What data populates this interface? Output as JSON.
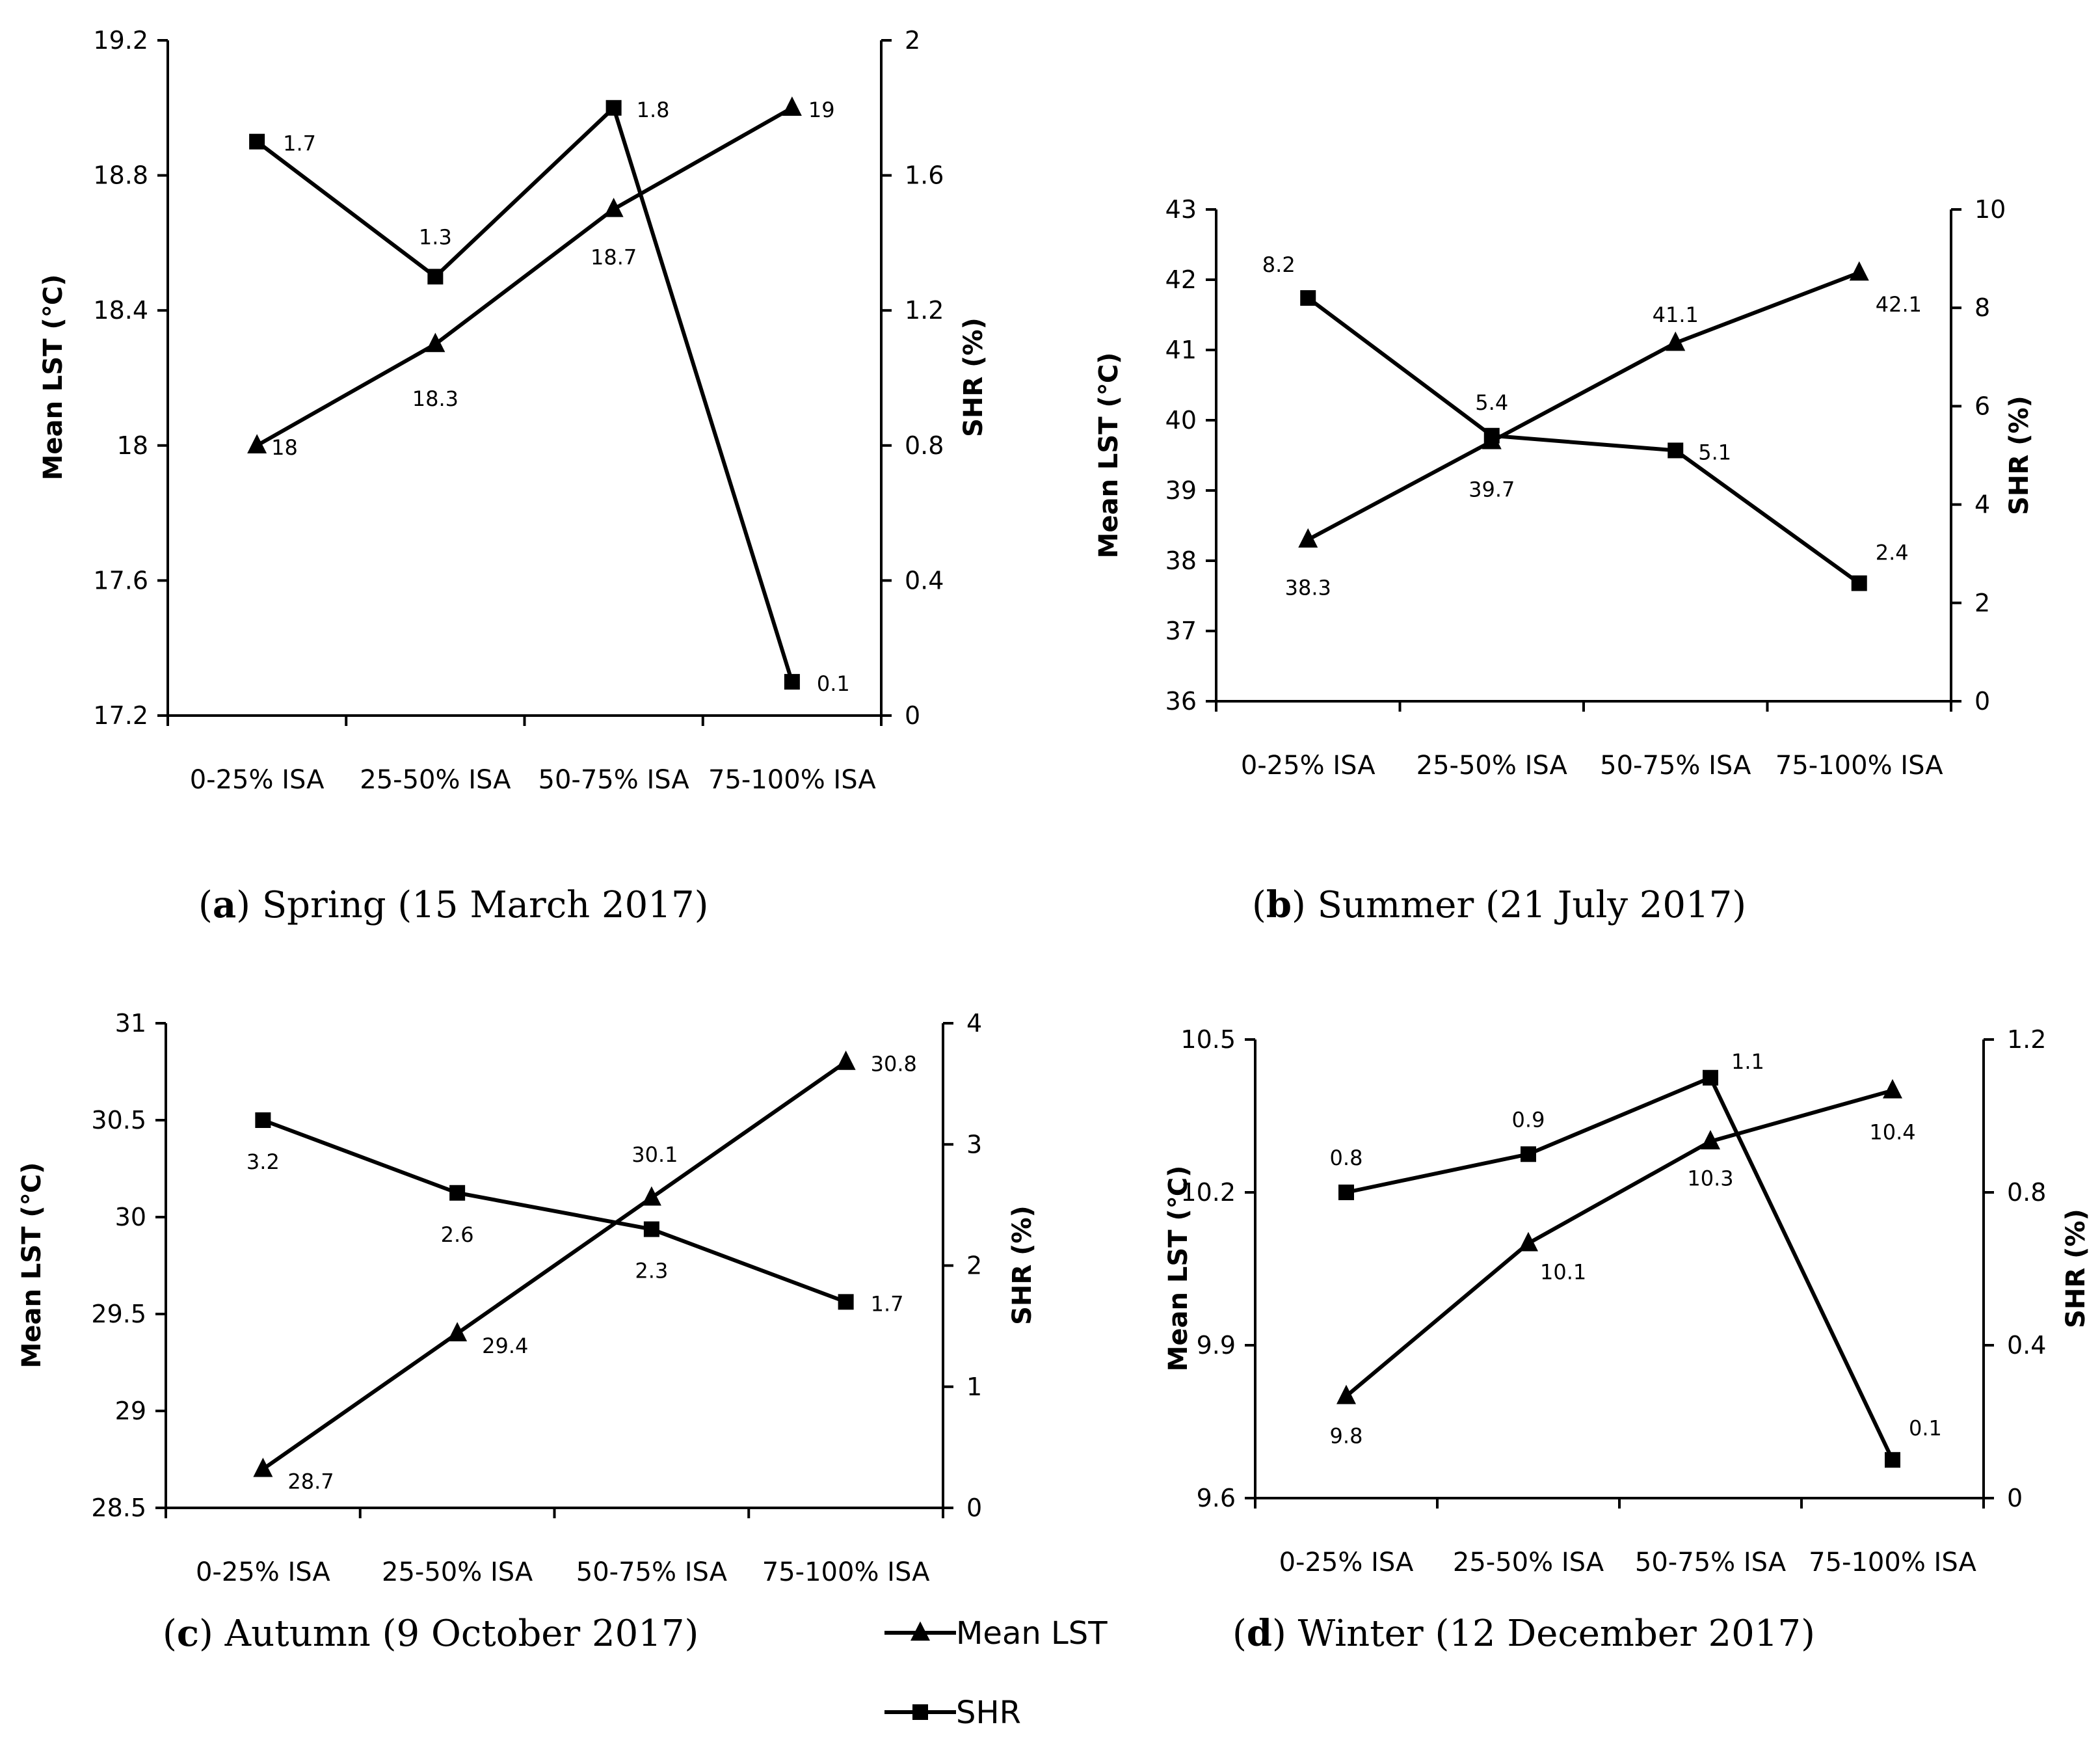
{
  "chart_data": [
    {
      "type": "line",
      "panel": "a",
      "caption_letter": "a",
      "caption_text": "Spring (15 March 2017)",
      "categories": [
        "0-25% ISA",
        "25-50% ISA",
        "50-75% ISA",
        "75-100% ISA"
      ],
      "ylabel": "Mean LST (℃)",
      "y2label": "SHR (%)",
      "ylim": [
        17.2,
        19.2
      ],
      "yticks": [
        "17.2",
        "17.6",
        "18",
        "18.4",
        "18.8",
        "19.2"
      ],
      "y2lim": [
        0,
        2
      ],
      "y2ticks": [
        "0",
        "0.4",
        "0.8",
        "1.2",
        "1.6",
        "2"
      ],
      "series": [
        {
          "name": "Mean LST",
          "marker": "triangle",
          "axis": "left",
          "values": [
            18,
            18.3,
            18.7,
            19
          ],
          "labels": [
            "18",
            "18.3",
            "18.7",
            "19"
          ]
        },
        {
          "name": "SHR",
          "marker": "square",
          "axis": "right",
          "values": [
            1.7,
            1.3,
            1.8,
            0.1
          ],
          "labels": [
            "1.7",
            "1.3",
            "1.8",
            "0.1"
          ]
        }
      ]
    },
    {
      "type": "line",
      "panel": "b",
      "caption_letter": "b",
      "caption_text": "Summer (21 July 2017)",
      "categories": [
        "0-25% ISA",
        "25-50% ISA",
        "50-75% ISA",
        "75-100% ISA"
      ],
      "ylabel": "Mean LST (℃)",
      "y2label": "SHR (%)",
      "ylim": [
        36,
        43
      ],
      "yticks": [
        "36",
        "37",
        "38",
        "39",
        "40",
        "41",
        "42",
        "43"
      ],
      "y2lim": [
        0,
        10
      ],
      "y2ticks": [
        "0",
        "2",
        "4",
        "6",
        "8",
        "10"
      ],
      "series": [
        {
          "name": "Mean LST",
          "marker": "triangle",
          "axis": "left",
          "values": [
            38.3,
            39.7,
            41.1,
            42.1
          ],
          "labels": [
            "38.3",
            "39.7",
            "41.1",
            "42.1"
          ]
        },
        {
          "name": "SHR",
          "marker": "square",
          "axis": "right",
          "values": [
            8.2,
            5.4,
            5.1,
            2.4
          ],
          "labels": [
            "8.2",
            "5.4",
            "5.1",
            "2.4"
          ]
        }
      ]
    },
    {
      "type": "line",
      "panel": "c",
      "caption_letter": "c",
      "caption_text": "Autumn (9 October 2017)",
      "categories": [
        "0-25% ISA",
        "25-50% ISA",
        "50-75% ISA",
        "75-100% ISA"
      ],
      "ylabel": "Mean LST (℃)",
      "y2label": "SHR (%)",
      "ylim": [
        28.5,
        31
      ],
      "yticks": [
        "28.5",
        "29",
        "29.5",
        "30",
        "30.5",
        "31"
      ],
      "y2lim": [
        0,
        4
      ],
      "y2ticks": [
        "0",
        "1",
        "2",
        "3",
        "4"
      ],
      "series": [
        {
          "name": "Mean LST",
          "marker": "triangle",
          "axis": "left",
          "values": [
            28.7,
            29.4,
            30.1,
            30.8
          ],
          "labels": [
            "28.7",
            "29.4",
            "30.1",
            "30.8"
          ]
        },
        {
          "name": "SHR",
          "marker": "square",
          "axis": "right",
          "values": [
            3.2,
            2.6,
            2.3,
            1.7
          ],
          "labels": [
            "3.2",
            "2.6",
            "2.3",
            "1.7"
          ]
        }
      ]
    },
    {
      "type": "line",
      "panel": "d",
      "caption_letter": "d",
      "caption_text": "Winter (12 December 2017)",
      "categories": [
        "0-25% ISA",
        "25-50% ISA",
        "50-75% ISA",
        "75-100% ISA"
      ],
      "ylabel": "Mean LST (℃)",
      "y2label": "SHR (%)",
      "ylim": [
        9.6,
        10.5
      ],
      "yticks": [
        "9.6",
        "9.9",
        "10.2",
        "10.5"
      ],
      "y2lim": [
        0,
        1.2
      ],
      "y2ticks": [
        "0",
        "0.4",
        "0.8",
        "1.2"
      ],
      "series": [
        {
          "name": "Mean LST",
          "marker": "triangle",
          "axis": "left",
          "values": [
            9.8,
            10.1,
            10.3,
            10.4
          ],
          "labels": [
            "9.8",
            "10.1",
            "10.3",
            "10.4"
          ]
        },
        {
          "name": "SHR",
          "marker": "square",
          "axis": "right",
          "values": [
            0.8,
            0.9,
            1.1,
            0.1
          ],
          "labels": [
            "0.8",
            "0.9",
            "1.1",
            "0.1"
          ]
        }
      ]
    }
  ],
  "legend": [
    {
      "name": "Mean LST",
      "marker": "triangle"
    },
    {
      "name": "SHR",
      "marker": "square"
    }
  ]
}
